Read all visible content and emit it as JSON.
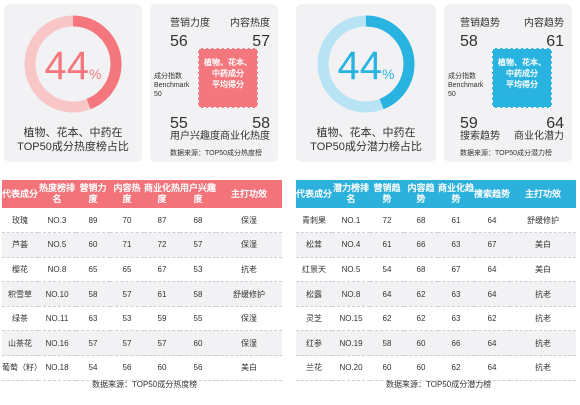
{
  "left": {
    "donut": {
      "percent": 44,
      "percent_text": "44",
      "unit": "%",
      "caption_line1": "植物、花本、中药在",
      "caption_line2": "TOP50成分热度榜占比",
      "color": "#f3777c",
      "track_color": "#f8c6c7"
    },
    "box": {
      "tl_label": "营销力度",
      "tl_value": "56",
      "tr_label": "内容热度",
      "tr_value": "57",
      "bl_value": "55",
      "bl_label": "用户兴趣度",
      "br_value": "58",
      "br_label": "商业化热度",
      "benchmark": [
        "成分指数",
        "Benchmark",
        "50"
      ],
      "center": [
        "植物、花本、",
        "中药成分",
        "平均得分"
      ],
      "center_color": "#f3777c",
      "source": "数据来源：TOP50成分热度榜"
    },
    "table": {
      "header_color": "#f2737a",
      "headers": [
        "代表成分",
        "热度榜排名",
        "营销力度",
        "内容热度",
        "商业化热度",
        "用户兴趣度",
        "主打功效"
      ],
      "rows": [
        [
          "玫瑰",
          "NO.3",
          "89",
          "70",
          "87",
          "68",
          "保湿"
        ],
        [
          "芦荟",
          "NO.5",
          "60",
          "71",
          "72",
          "57",
          "保湿"
        ],
        [
          "樱花",
          "NO.8",
          "65",
          "65",
          "67",
          "53",
          "抗老"
        ],
        [
          "积雪草",
          "NO.10",
          "58",
          "57",
          "61",
          "58",
          "舒缓修护"
        ],
        [
          "绿茶",
          "NO.11",
          "63",
          "53",
          "59",
          "55",
          "保湿"
        ],
        [
          "山茶花",
          "NO.16",
          "57",
          "57",
          "57",
          "60",
          "保湿"
        ],
        [
          "葡萄（籽）",
          "NO.18",
          "54",
          "56",
          "60",
          "56",
          "美白"
        ]
      ],
      "source": "数据来源：TOP50成分热度榜"
    }
  },
  "right": {
    "donut": {
      "percent": 44,
      "percent_text": "44",
      "unit": "%",
      "caption_line1": "植物、花本、中药在",
      "caption_line2": "TOP50成分潜力榜占比",
      "color": "#28b3e0",
      "track_color": "#b7e3f4"
    },
    "box": {
      "tl_label": "营销趋势",
      "tl_value": "58",
      "tr_label": "内容趋势",
      "tr_value": "61",
      "bl_value": "59",
      "bl_label": "搜索趋势",
      "br_value": "64",
      "br_label": "商业化潜力",
      "benchmark": [
        "成分指数",
        "Benchmark",
        "50"
      ],
      "center": [
        "植物、花本、",
        "中药成分",
        "平均得分"
      ],
      "center_color": "#28b3e0",
      "source": "数据来源：TOP50成分潜力榜"
    },
    "table": {
      "header_color": "#2cb0dc",
      "headers": [
        "代表成分",
        "潜力榜排名",
        "营销趋势",
        "内容趋势",
        "商业化趋势",
        "搜索趋势",
        "主打功效"
      ],
      "rows": [
        [
          "青刺果",
          "NO.1",
          "72",
          "68",
          "61",
          "64",
          "舒缓修护"
        ],
        [
          "松茸",
          "NO.4",
          "61",
          "66",
          "63",
          "67",
          "美白"
        ],
        [
          "红景天",
          "NO.5",
          "54",
          "68",
          "67",
          "64",
          "美白"
        ],
        [
          "松露",
          "NO.8",
          "64",
          "62",
          "63",
          "64",
          "抗老"
        ],
        [
          "灵芝",
          "NO.15",
          "62",
          "62",
          "63",
          "62",
          "抗老"
        ],
        [
          "红参",
          "NO.19",
          "58",
          "60",
          "66",
          "64",
          "抗老"
        ],
        [
          "兰花",
          "NO.20",
          "60",
          "60",
          "62",
          "64",
          "抗老"
        ]
      ],
      "source": "数据来源：TOP50成分潜力榜"
    }
  },
  "chart_data": [
    {
      "type": "pie",
      "values": [
        44,
        56
      ],
      "categories": [
        "植物、花本、中药",
        ""
      ],
      "title": "植物、花本、中药在TOP50成分热度榜占比"
    },
    {
      "type": "pie",
      "values": [
        44,
        56
      ],
      "categories": [
        "植物、花本、中药",
        ""
      ],
      "title": "植物、花本、中药在TOP50成分潜力榜占比"
    },
    {
      "type": "table",
      "title": "",
      "columns": [
        "代表成分",
        "热度榜排名",
        "营销力度",
        "内容热度",
        "商业化热度",
        "用户兴趣度",
        "主打功效"
      ]
    },
    {
      "type": "table",
      "title": "",
      "columns": [
        "代表成分",
        "潜力榜排名",
        "营销趋势",
        "内容趋势",
        "商业化趋势",
        "搜索趋势",
        "主打功效"
      ]
    }
  ]
}
